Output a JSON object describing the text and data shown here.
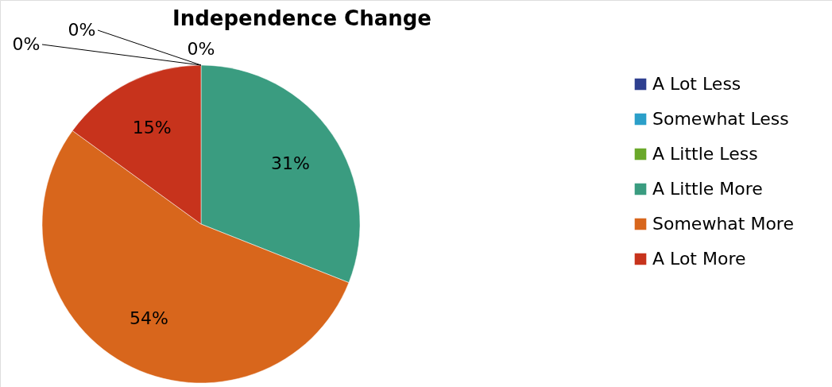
{
  "chart_data": {
    "type": "pie",
    "title": "Independence Change",
    "categories": [
      "A Lot Less",
      "Somewhat Less",
      "A Little Less",
      "A Little More",
      "Somewhat More",
      "A Lot More"
    ],
    "values": [
      0,
      0,
      0,
      31,
      54,
      15
    ],
    "colors": [
      "#2e3f8f",
      "#2b9fc9",
      "#6aa82a",
      "#3a9c80",
      "#d8661c",
      "#c7331c"
    ],
    "value_labels": [
      "0%",
      "0%",
      "0%",
      "31%",
      "54%",
      "15%"
    ],
    "legend": "right"
  }
}
